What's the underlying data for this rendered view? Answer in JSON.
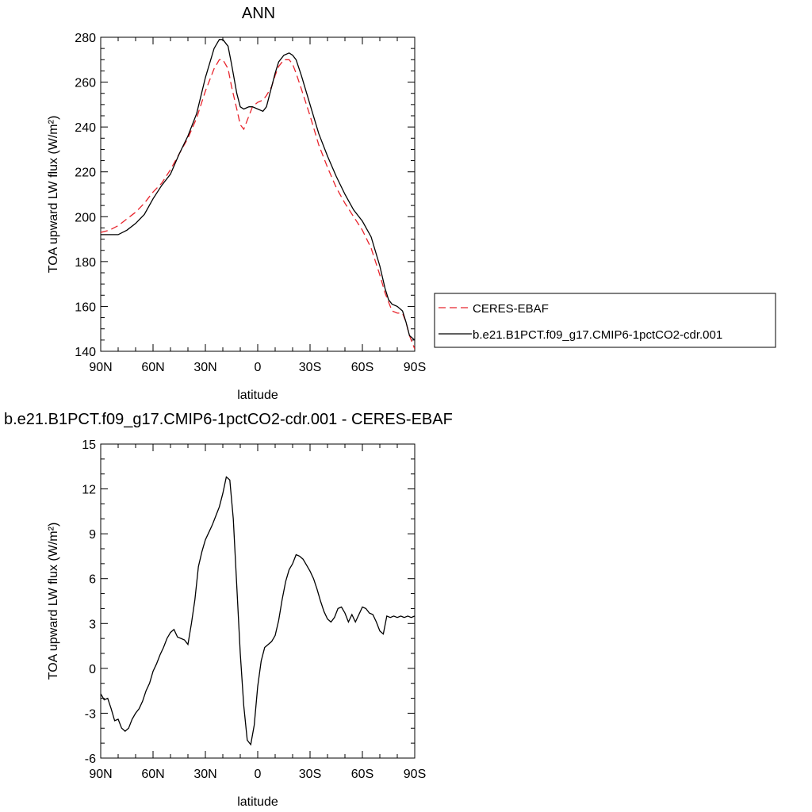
{
  "chart_data": [
    {
      "type": "line",
      "title": "ANN",
      "xlabel": "latitude",
      "ylabel": "TOA upward LW flux (W/m²)",
      "xlim": [
        90,
        -90
      ],
      "ylim": [
        140,
        280
      ],
      "x_ticks": [
        {
          "value": 90,
          "label": "90N"
        },
        {
          "value": 60,
          "label": "60N"
        },
        {
          "value": 30,
          "label": "30N"
        },
        {
          "value": 0,
          "label": "0"
        },
        {
          "value": -30,
          "label": "30S"
        },
        {
          "value": -60,
          "label": "60S"
        },
        {
          "value": -90,
          "label": "90S"
        }
      ],
      "y_ticks": [
        140,
        160,
        180,
        200,
        220,
        240,
        260,
        280
      ],
      "grid": false,
      "legend_position": "right",
      "series": [
        {
          "name": "CERES-EBAF",
          "color": "#e8242c",
          "dash": true,
          "x": [
            90,
            85,
            80,
            75,
            70,
            65,
            60,
            55,
            50,
            45,
            40,
            35,
            30,
            25,
            22,
            20,
            17,
            15,
            12,
            10,
            8,
            5,
            3,
            0,
            -3,
            -5,
            -8,
            -10,
            -12,
            -15,
            -18,
            -20,
            -22,
            -25,
            -30,
            -35,
            -40,
            -45,
            -50,
            -55,
            -60,
            -65,
            -70,
            -73,
            -75,
            -77,
            -80,
            -83,
            -85,
            -87,
            -90
          ],
          "y": [
            193,
            194,
            196,
            199,
            202,
            206,
            211,
            215,
            221,
            228,
            235,
            244,
            256,
            266,
            270,
            270,
            266,
            258,
            248,
            241,
            239,
            245,
            249,
            251,
            252,
            254,
            258,
            263,
            267,
            270,
            270,
            268,
            264,
            257,
            245,
            232,
            222,
            213,
            206,
            200,
            194,
            186,
            174,
            166,
            162,
            158,
            157,
            157,
            153,
            147,
            141
          ]
        },
        {
          "name": "b.e21.B1PCT.f09_g17.CMIP6-1pctCO2-cdr.001",
          "color": "#000000",
          "dash": false,
          "x": [
            90,
            85,
            80,
            75,
            70,
            65,
            60,
            55,
            50,
            45,
            40,
            35,
            30,
            25,
            22,
            20,
            17,
            15,
            12,
            10,
            8,
            5,
            3,
            0,
            -3,
            -5,
            -8,
            -10,
            -12,
            -15,
            -18,
            -20,
            -22,
            -25,
            -30,
            -35,
            -40,
            -45,
            -50,
            -55,
            -60,
            -65,
            -70,
            -73,
            -75,
            -77,
            -80,
            -83,
            -85,
            -87,
            -90
          ],
          "y": [
            192,
            192,
            192,
            194,
            197,
            201,
            208,
            214,
            219,
            228,
            236,
            246,
            262,
            275,
            279,
            279,
            276,
            268,
            255,
            249,
            248,
            249,
            249,
            248,
            247,
            249,
            258,
            264,
            269,
            272,
            273,
            272,
            270,
            263,
            250,
            237,
            227,
            218,
            210,
            203,
            198,
            191,
            178,
            168,
            163,
            161,
            160,
            158,
            153,
            147,
            145
          ]
        }
      ]
    },
    {
      "type": "line",
      "title": "b.e21.B1PCT.f09_g17.CMIP6-1pctCO2-cdr.001 - CERES-EBAF",
      "xlabel": "latitude",
      "ylabel": "TOA upward LW flux (W/m²)",
      "xlim": [
        90,
        -90
      ],
      "ylim": [
        -6,
        15
      ],
      "x_ticks": [
        {
          "value": 90,
          "label": "90N"
        },
        {
          "value": 60,
          "label": "60N"
        },
        {
          "value": 30,
          "label": "30N"
        },
        {
          "value": 0,
          "label": "0"
        },
        {
          "value": -30,
          "label": "30S"
        },
        {
          "value": -60,
          "label": "60S"
        },
        {
          "value": -90,
          "label": "90S"
        }
      ],
      "y_ticks": [
        -6,
        -3,
        0,
        3,
        6,
        9,
        12,
        15
      ],
      "grid": false,
      "series": [
        {
          "color": "#000000",
          "dash": false,
          "x": [
            90,
            88,
            86,
            84,
            82,
            80,
            78,
            76,
            74,
            72,
            70,
            68,
            66,
            64,
            62,
            60,
            58,
            56,
            54,
            52,
            50,
            48,
            46,
            44,
            42,
            40,
            38,
            36,
            34,
            32,
            30,
            28,
            26,
            24,
            22,
            20,
            18,
            16,
            14,
            12,
            10,
            8,
            6,
            4,
            2,
            0,
            -2,
            -4,
            -6,
            -8,
            -10,
            -12,
            -14,
            -16,
            -18,
            -20,
            -22,
            -24,
            -26,
            -28,
            -30,
            -32,
            -34,
            -36,
            -38,
            -40,
            -42,
            -44,
            -46,
            -48,
            -50,
            -52,
            -54,
            -56,
            -58,
            -60,
            -62,
            -64,
            -66,
            -68,
            -70,
            -72,
            -74,
            -76,
            -78,
            -80,
            -82,
            -84,
            -86,
            -88,
            -90
          ],
          "y": [
            -1.7,
            -2.1,
            -2.0,
            -2.7,
            -3.5,
            -3.4,
            -4.0,
            -4.2,
            -4.0,
            -3.4,
            -3.0,
            -2.7,
            -2.2,
            -1.5,
            -1.0,
            -0.2,
            0.3,
            0.9,
            1.4,
            2.0,
            2.4,
            2.6,
            2.1,
            2.0,
            1.9,
            1.6,
            3.0,
            4.6,
            6.8,
            7.8,
            8.6,
            9.1,
            9.6,
            10.2,
            10.8,
            11.7,
            12.8,
            12.6,
            10.0,
            5.5,
            1.0,
            -2.5,
            -4.8,
            -5.1,
            -3.8,
            -1.2,
            0.5,
            1.4,
            1.6,
            1.8,
            2.2,
            3.2,
            4.6,
            5.8,
            6.6,
            7.0,
            7.6,
            7.5,
            7.3,
            6.9,
            6.5,
            6.0,
            5.3,
            4.5,
            3.8,
            3.3,
            3.1,
            3.4,
            4.0,
            4.1,
            3.7,
            3.1,
            3.6,
            3.1,
            3.6,
            4.1,
            4.0,
            3.7,
            3.6,
            3.1,
            2.5,
            2.3,
            3.5,
            3.4,
            3.5,
            3.4,
            3.5,
            3.4,
            3.5,
            3.4,
            3.5
          ]
        }
      ]
    }
  ]
}
